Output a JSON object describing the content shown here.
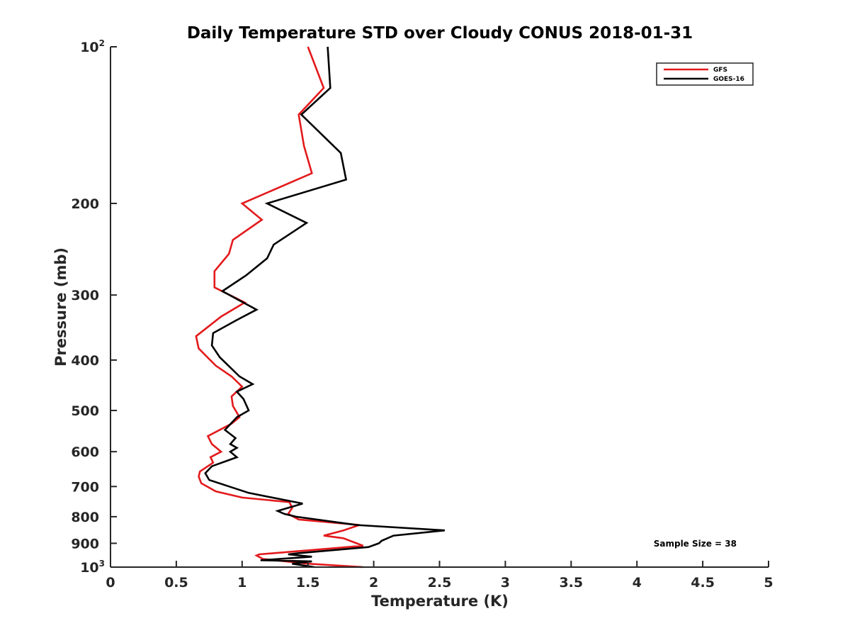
{
  "chart_data": {
    "type": "line",
    "title": "Daily Temperature STD over Cloudy CONUS 2018-01-31",
    "xlabel": "Temperature (K)",
    "ylabel": "Pressure (mb)",
    "xlim": [
      0,
      5
    ],
    "ylim": [
      100,
      1000
    ],
    "y_scale": "log",
    "y_reversed": true,
    "grid": false,
    "legend_position": "top-right",
    "x_ticks": [
      "0",
      "0.5",
      "1",
      "1.5",
      "2",
      "2.5",
      "3",
      "3.5",
      "4",
      "4.5",
      "5"
    ],
    "y_ticks": [
      {
        "value": 100,
        "base": "10",
        "sup": "2"
      },
      {
        "value": 200,
        "base": "200",
        "sup": ""
      },
      {
        "value": 300,
        "base": "300",
        "sup": ""
      },
      {
        "value": 400,
        "base": "400",
        "sup": ""
      },
      {
        "value": 500,
        "base": "500",
        "sup": ""
      },
      {
        "value": 600,
        "base": "600",
        "sup": ""
      },
      {
        "value": 700,
        "base": "700",
        "sup": ""
      },
      {
        "value": 800,
        "base": "800",
        "sup": ""
      },
      {
        "value": 900,
        "base": "900",
        "sup": ""
      },
      {
        "value": 1000,
        "base": "10",
        "sup": "3"
      }
    ],
    "annotation": "Sample Size = 38",
    "series": [
      {
        "name": "GFS",
        "color": "#e31a1c",
        "points": [
          [
            1.5,
            100
          ],
          [
            1.62,
            120
          ],
          [
            1.43,
            135
          ],
          [
            1.47,
            155
          ],
          [
            1.53,
            175
          ],
          [
            1.0,
            200
          ],
          [
            1.15,
            215
          ],
          [
            0.93,
            235
          ],
          [
            0.9,
            250
          ],
          [
            0.79,
            270
          ],
          [
            0.79,
            290
          ],
          [
            1.02,
            310
          ],
          [
            0.84,
            330
          ],
          [
            0.65,
            360
          ],
          [
            0.67,
            380
          ],
          [
            0.8,
            410
          ],
          [
            0.92,
            430
          ],
          [
            1.0,
            450
          ],
          [
            0.92,
            470
          ],
          [
            0.93,
            490
          ],
          [
            0.98,
            515
          ],
          [
            0.92,
            530
          ],
          [
            0.74,
            560
          ],
          [
            0.77,
            580
          ],
          [
            0.84,
            600
          ],
          [
            0.76,
            615
          ],
          [
            0.78,
            630
          ],
          [
            0.68,
            655
          ],
          [
            0.67,
            670
          ],
          [
            0.69,
            690
          ],
          [
            0.8,
            715
          ],
          [
            1.0,
            735
          ],
          [
            1.36,
            750
          ],
          [
            1.38,
            770
          ],
          [
            1.35,
            790
          ],
          [
            1.43,
            810
          ],
          [
            1.89,
            830
          ],
          [
            1.77,
            850
          ],
          [
            1.62,
            870
          ],
          [
            1.77,
            880
          ],
          [
            1.87,
            900
          ],
          [
            1.92,
            910
          ],
          [
            1.13,
            945
          ],
          [
            1.11,
            950
          ],
          [
            1.16,
            965
          ],
          [
            1.5,
            985
          ],
          [
            1.92,
            1000
          ]
        ]
      },
      {
        "name": "GOES-16",
        "color": "#000000",
        "points": [
          [
            1.65,
            100
          ],
          [
            1.67,
            120
          ],
          [
            1.45,
            135
          ],
          [
            1.75,
            160
          ],
          [
            1.79,
            180
          ],
          [
            1.19,
            200
          ],
          [
            1.49,
            218
          ],
          [
            1.24,
            240
          ],
          [
            1.19,
            255
          ],
          [
            1.03,
            275
          ],
          [
            0.85,
            295
          ],
          [
            1.11,
            320
          ],
          [
            0.96,
            335
          ],
          [
            0.78,
            355
          ],
          [
            0.77,
            375
          ],
          [
            0.83,
            395
          ],
          [
            0.98,
            430
          ],
          [
            1.08,
            445
          ],
          [
            0.96,
            460
          ],
          [
            1.01,
            475
          ],
          [
            1.05,
            500
          ],
          [
            0.96,
            515
          ],
          [
            0.87,
            545
          ],
          [
            0.95,
            565
          ],
          [
            0.91,
            580
          ],
          [
            0.96,
            590
          ],
          [
            0.91,
            600
          ],
          [
            0.96,
            615
          ],
          [
            0.77,
            640
          ],
          [
            0.72,
            660
          ],
          [
            0.75,
            680
          ],
          [
            1.05,
            720
          ],
          [
            1.46,
            755
          ],
          [
            1.27,
            780
          ],
          [
            1.32,
            790
          ],
          [
            1.41,
            800
          ],
          [
            1.87,
            830
          ],
          [
            2.54,
            850
          ],
          [
            2.15,
            870
          ],
          [
            2.06,
            890
          ],
          [
            2.04,
            900
          ],
          [
            1.96,
            915
          ],
          [
            1.43,
            940
          ],
          [
            1.35,
            945
          ],
          [
            1.53,
            955
          ],
          [
            1.14,
            970
          ],
          [
            1.53,
            975
          ],
          [
            1.38,
            985
          ],
          [
            1.55,
            1000
          ]
        ]
      }
    ]
  }
}
